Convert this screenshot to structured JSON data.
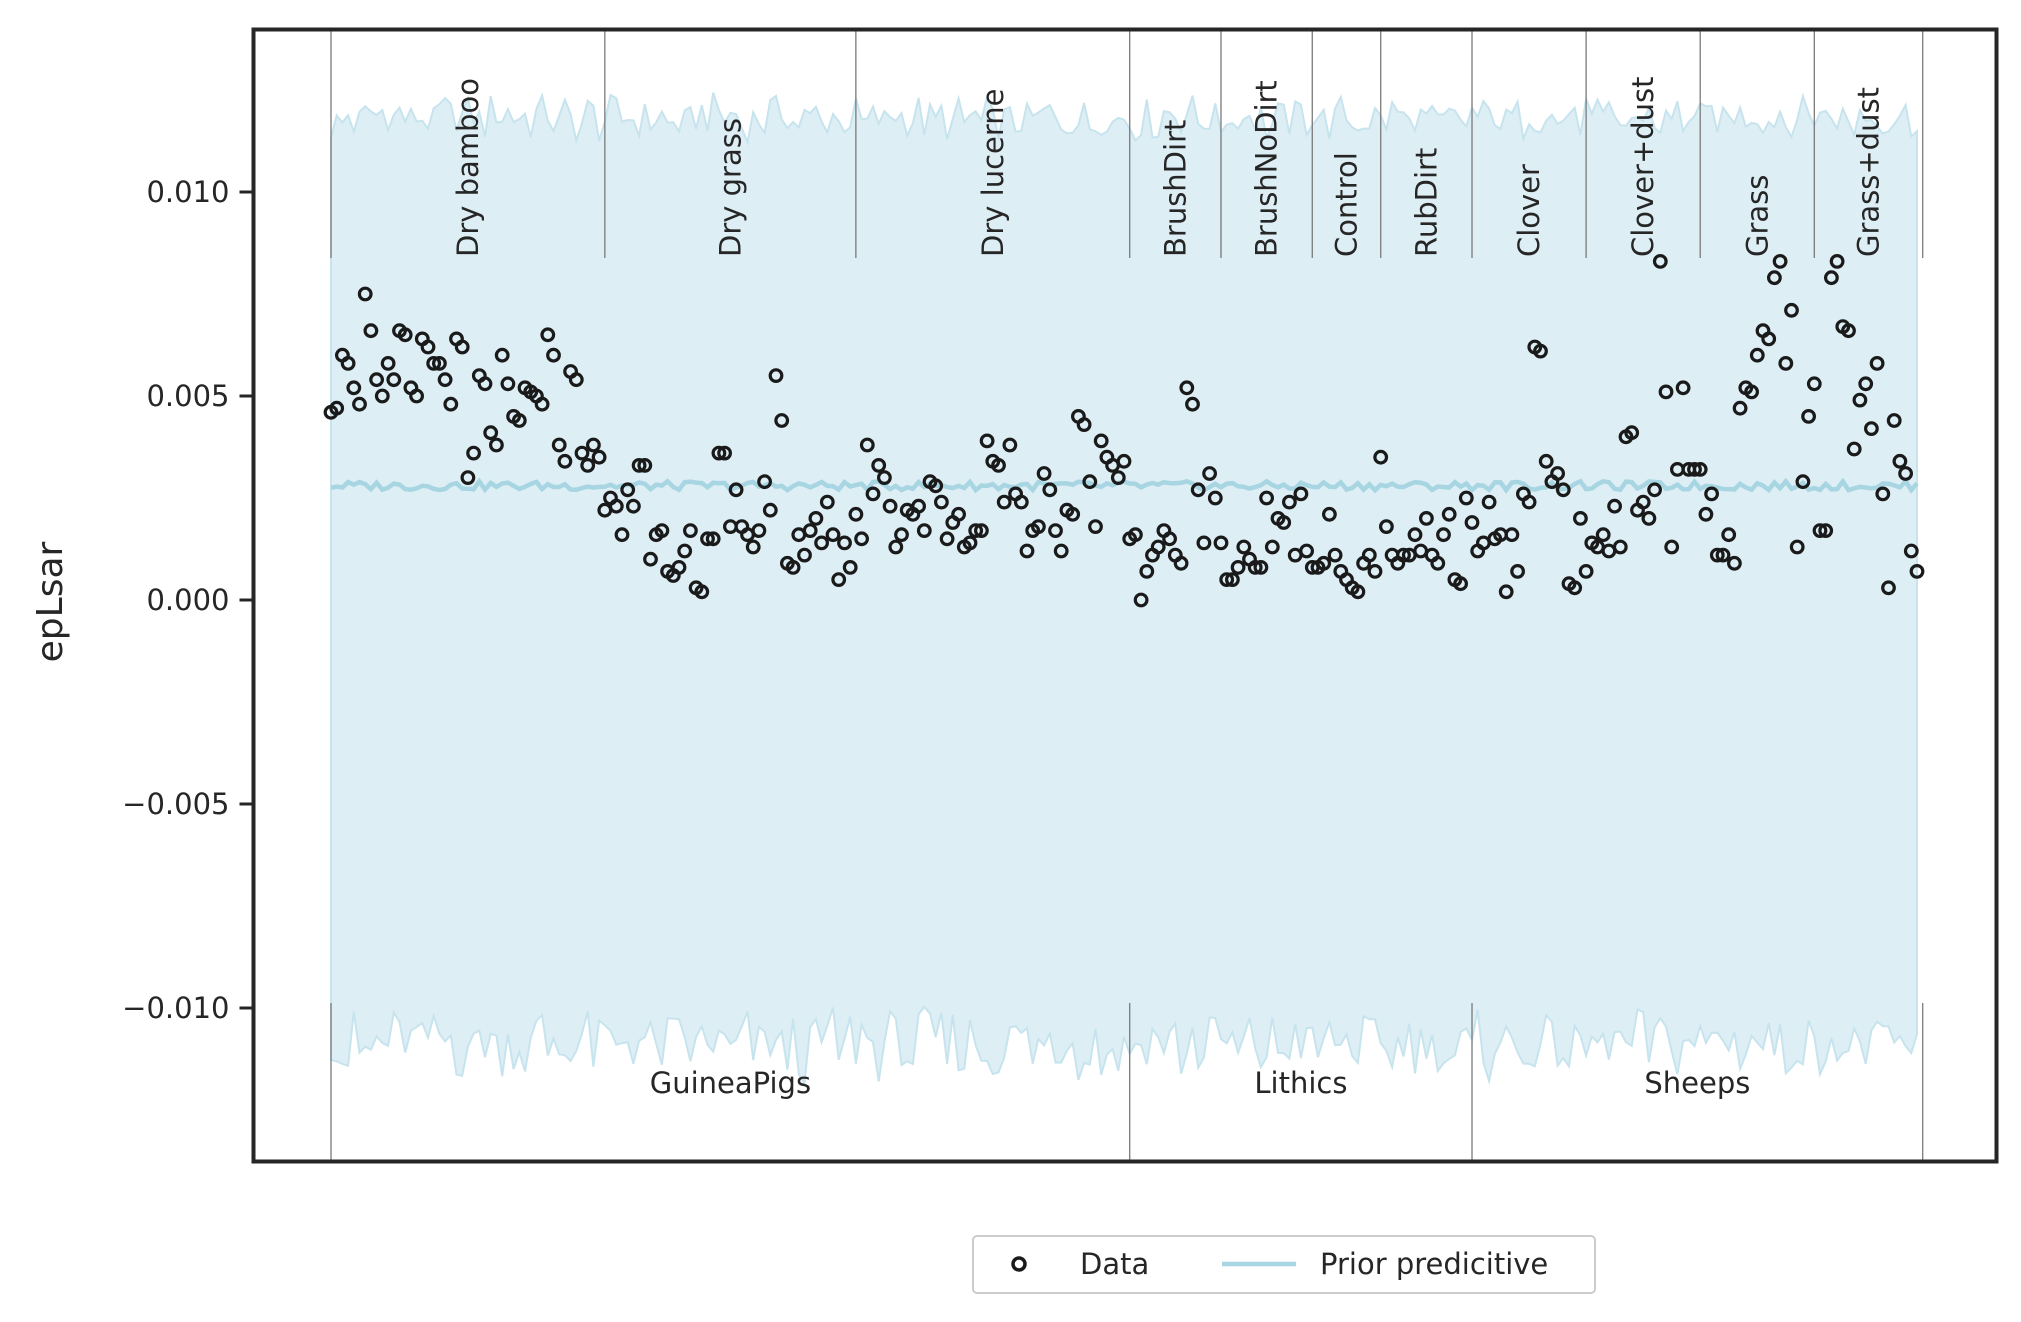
{
  "chart_data": {
    "type": "scatter",
    "title": "",
    "xlabel": "",
    "ylabel": "epLsar",
    "ylim": [
      -0.0127,
      0.0141
    ],
    "yticks": [
      {
        "value": 0.01,
        "label": "0.010"
      },
      {
        "value": 0.005,
        "label": "0.005"
      },
      {
        "value": 0.0,
        "label": "0.000"
      },
      {
        "value": -0.005,
        "label": "−0.005"
      },
      {
        "value": -0.01,
        "label": "−0.010"
      }
    ],
    "grid": false,
    "legend": {
      "placement": "bottom-center",
      "entries": [
        "Data",
        "Prior predicitive"
      ]
    },
    "colors": {
      "data_marker": "#1a1a1a",
      "prior_line": "#a8d5e2",
      "prior_band": "#ddeef5",
      "prior_band_edge": "#c7e4ee",
      "separator": "#7a7a7a",
      "frame": "#262626"
    },
    "treatments": [
      {
        "label": "Dry bamboo",
        "start": 0,
        "end": 48
      },
      {
        "label": "Dry grass",
        "start": 48,
        "end": 92
      },
      {
        "label": "Dry lucerne",
        "start": 92,
        "end": 140
      },
      {
        "label": "BrushDirt",
        "start": 140,
        "end": 156
      },
      {
        "label": "BrushNoDirt",
        "start": 156,
        "end": 172
      },
      {
        "label": "Control",
        "start": 172,
        "end": 184
      },
      {
        "label": "RubDirt",
        "start": 184,
        "end": 200
      },
      {
        "label": "Clover",
        "start": 200,
        "end": 220
      },
      {
        "label": "Clover+dust",
        "start": 220,
        "end": 240
      },
      {
        "label": "Grass",
        "start": 240,
        "end": 260
      },
      {
        "label": "Grass+dust",
        "start": 260,
        "end": 279
      }
    ],
    "datasets": [
      {
        "label": "GuineaPigs",
        "start": 0,
        "end": 140
      },
      {
        "label": "Lithics",
        "start": 140,
        "end": 200
      },
      {
        "label": "Sheeps",
        "start": 200,
        "end": 279
      }
    ],
    "prior_predictive": {
      "mean": 0.0028,
      "upper": 0.0118,
      "lower": -0.0109
    },
    "data_points": [
      0.0046,
      0.0047,
      0.006,
      0.0058,
      0.0052,
      0.0048,
      0.0075,
      0.0066,
      0.0054,
      0.005,
      0.0058,
      0.0054,
      0.0066,
      0.0065,
      0.0052,
      0.005,
      0.0064,
      0.0062,
      0.0058,
      0.0058,
      0.0054,
      0.0048,
      0.0064,
      0.0062,
      0.003,
      0.0036,
      0.0055,
      0.0053,
      0.0041,
      0.0038,
      0.006,
      0.0053,
      0.0045,
      0.0044,
      0.0052,
      0.0051,
      0.005,
      0.0048,
      0.0065,
      0.006,
      0.0038,
      0.0034,
      0.0056,
      0.0054,
      0.0036,
      0.0033,
      0.0038,
      0.0035,
      0.0022,
      0.0025,
      0.0023,
      0.0016,
      0.0027,
      0.0023,
      0.0033,
      0.0033,
      0.001,
      0.0016,
      0.0017,
      0.0007,
      0.0006,
      0.0008,
      0.0012,
      0.0017,
      0.0003,
      0.0002,
      0.0015,
      0.0015,
      0.0036,
      0.0036,
      0.0018,
      0.0027,
      0.0018,
      0.0016,
      0.0013,
      0.0017,
      0.0029,
      0.0022,
      0.0055,
      0.0044,
      0.0009,
      0.0008,
      0.0016,
      0.0011,
      0.0017,
      0.002,
      0.0014,
      0.0024,
      0.0016,
      0.0005,
      0.0014,
      0.0008,
      0.0021,
      0.0015,
      0.0038,
      0.0026,
      0.0033,
      0.003,
      0.0023,
      0.0013,
      0.0016,
      0.0022,
      0.0021,
      0.0023,
      0.0017,
      0.0029,
      0.0028,
      0.0024,
      0.0015,
      0.0019,
      0.0021,
      0.0013,
      0.0014,
      0.0017,
      0.0017,
      0.0039,
      0.0034,
      0.0033,
      0.0024,
      0.0038,
      0.0026,
      0.0024,
      0.0012,
      0.0017,
      0.0018,
      0.0031,
      0.0027,
      0.0017,
      0.0012,
      0.0022,
      0.0021,
      0.0045,
      0.0043,
      0.0029,
      0.0018,
      0.0039,
      0.0035,
      0.0033,
      0.003,
      0.0034,
      0.0015,
      0.0016,
      0.0,
      0.0007,
      0.0011,
      0.0013,
      0.0017,
      0.0015,
      0.0011,
      0.0009,
      0.0052,
      0.0048,
      0.0027,
      0.0014,
      0.0031,
      0.0025,
      0.0014,
      0.0005,
      0.0005,
      0.0008,
      0.0013,
      0.001,
      0.0008,
      0.0008,
      0.0025,
      0.0013,
      0.002,
      0.0019,
      0.0024,
      0.0011,
      0.0026,
      0.0012,
      0.0008,
      0.0008,
      0.0009,
      0.0021,
      0.0011,
      0.0007,
      0.0005,
      0.0003,
      0.0002,
      0.0009,
      0.0011,
      0.0007,
      0.0035,
      0.0018,
      0.0011,
      0.0009,
      0.0011,
      0.0011,
      0.0016,
      0.0012,
      0.002,
      0.0011,
      0.0009,
      0.0016,
      0.0021,
      0.0005,
      0.0004,
      0.0025,
      0.0019,
      0.0012,
      0.0014,
      0.0024,
      0.0015,
      0.0016,
      0.0002,
      0.0016,
      0.0007,
      0.0026,
      0.0024,
      0.0062,
      0.0061,
      0.0034,
      0.0029,
      0.0031,
      0.0027,
      0.0004,
      0.0003,
      0.002,
      0.0007,
      0.0014,
      0.0013,
      0.0016,
      0.0012,
      0.0023,
      0.0013,
      0.004,
      0.0041,
      0.0022,
      0.0024,
      0.002,
      0.0027,
      0.0083,
      0.0051,
      0.0013,
      0.0032,
      0.0052,
      0.0032,
      0.0032,
      0.0032,
      0.0021,
      0.0026,
      0.0011,
      0.0011,
      0.0016,
      0.0009,
      0.0047,
      0.0052,
      0.0051,
      0.006,
      0.0066,
      0.0064,
      0.0079,
      0.0083,
      0.0058,
      0.0071,
      0.0013,
      0.0029,
      0.0045,
      0.0053,
      0.0017,
      0.0017,
      0.0079,
      0.0083,
      0.0067,
      0.0066,
      0.0037,
      0.0049,
      0.0053,
      0.0042,
      0.0058,
      0.0026,
      0.0003,
      0.0044,
      0.0034,
      0.0031,
      0.0012,
      0.0007
    ]
  }
}
